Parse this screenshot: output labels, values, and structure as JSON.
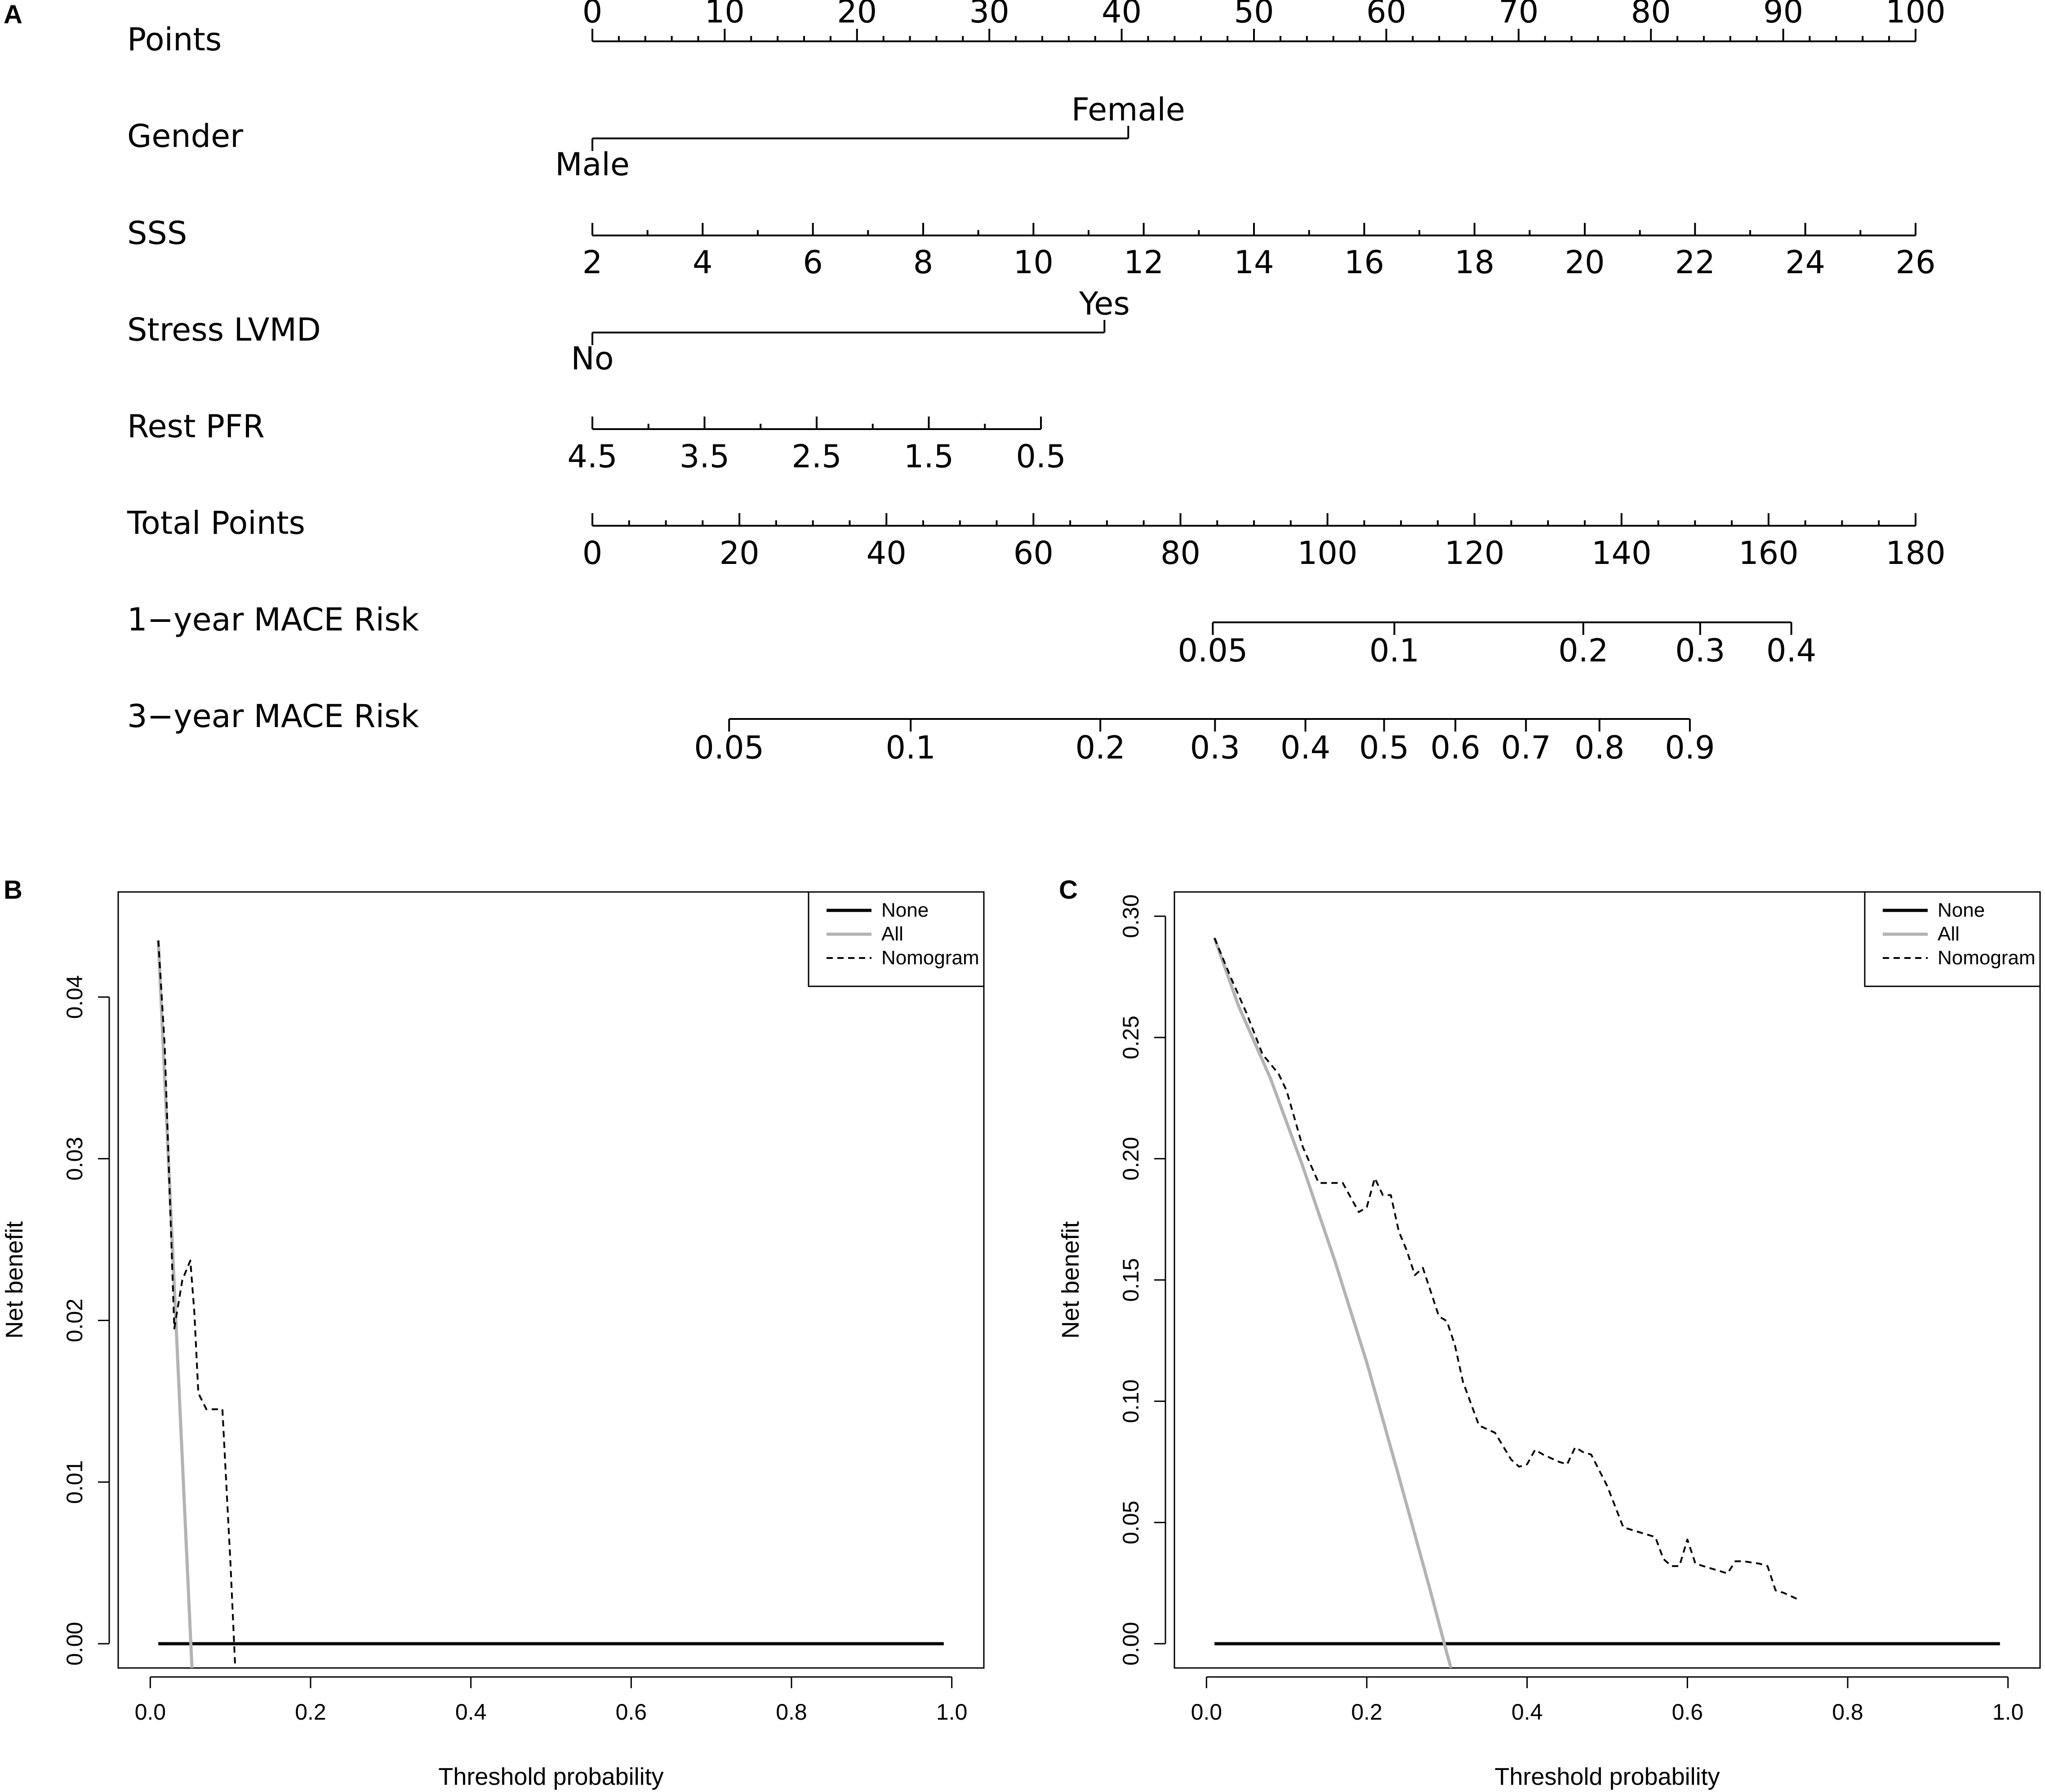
{
  "chart_data": [
    {
      "type": "nomogram",
      "panel_label": "A",
      "rows": [
        {
          "label": "Points",
          "kind": "axis",
          "tick_labels": [
            "0",
            "10",
            "20",
            "30",
            "40",
            "50",
            "60",
            "70",
            "80",
            "90",
            "100"
          ]
        },
        {
          "label": "Gender",
          "kind": "categorical",
          "low_label": "Male",
          "high_label": "Female",
          "points": [
            0,
            40.5
          ]
        },
        {
          "label": "SSS",
          "kind": "scale",
          "tick_labels": [
            "2",
            "4",
            "6",
            "8",
            "10",
            "12",
            "14",
            "16",
            "18",
            "20",
            "22",
            "24",
            "26"
          ],
          "points_range": [
            0,
            100
          ]
        },
        {
          "label": "Stress LVMD",
          "kind": "categorical",
          "low_label": "No",
          "high_label": "Yes",
          "points": [
            0,
            38.7
          ]
        },
        {
          "label": "Rest PFR",
          "kind": "scale",
          "tick_labels": [
            "4.5",
            "3.5",
            "2.5",
            "1.5",
            "0.5"
          ],
          "points_range": [
            0,
            33.9
          ]
        },
        {
          "label": "Total Points",
          "kind": "axis",
          "tick_labels": [
            "0",
            "20",
            "40",
            "60",
            "80",
            "100",
            "120",
            "140",
            "160",
            "180"
          ]
        },
        {
          "label": "1−year MACE Risk",
          "kind": "risk",
          "tick_labels": [
            "0.05",
            "0.1",
            "0.2",
            "0.3",
            "0.4"
          ],
          "total_points": [
            84.4,
            109.1,
            134.8,
            150.7,
            163.1
          ]
        },
        {
          "label": "3−year MACE Risk",
          "kind": "risk",
          "tick_labels": [
            "0.05",
            "0.1",
            "0.2",
            "0.3",
            "0.4",
            "0.5",
            "0.6",
            "0.7",
            "0.8",
            "0.9"
          ],
          "total_points": [
            18.6,
            43.3,
            69.1,
            84.7,
            97.0,
            107.7,
            117.4,
            127.0,
            137.0,
            149.3
          ]
        }
      ]
    },
    {
      "type": "line",
      "panel_label": "B",
      "xlabel": "Threshold probability",
      "ylabel": "Net benefit",
      "xlim": [
        0,
        1
      ],
      "ylim": [
        0,
        0.045
      ],
      "x_ticks": [
        0,
        0.2,
        0.4,
        0.6,
        0.8,
        1.0
      ],
      "x_tick_labels": [
        "0.0",
        "0.2",
        "0.4",
        "0.6",
        "0.8",
        "1.0"
      ],
      "y_ticks": [
        0,
        0.01,
        0.02,
        0.03,
        0.04
      ],
      "y_tick_labels": [
        "0.00",
        "0.01",
        "0.02",
        "0.03",
        "0.04"
      ],
      "legend": {
        "position": "top-right",
        "entries": [
          "None",
          "All",
          "Nomogram"
        ]
      },
      "series": [
        {
          "name": "None",
          "style": "solid",
          "color": "#000000",
          "x": [
            0.01,
            0.99
          ],
          "y": [
            0,
            0
          ]
        },
        {
          "name": "All",
          "style": "solid",
          "color": "#b3b3b3",
          "x": [
            0.01,
            0.052
          ],
          "y": [
            0.0435,
            -0.0015
          ]
        },
        {
          "name": "Nomogram",
          "style": "dashed",
          "color": "#000000",
          "x": [
            0.01,
            0.018,
            0.03,
            0.04,
            0.05,
            0.055,
            0.06,
            0.07,
            0.08,
            0.09,
            0.1,
            0.106
          ],
          "y": [
            0.0435,
            0.037,
            0.0195,
            0.0225,
            0.0237,
            0.0205,
            0.0155,
            0.0145,
            0.0145,
            0.0145,
            0.005,
            -0.0015
          ]
        }
      ]
    },
    {
      "type": "line",
      "panel_label": "C",
      "xlabel": "Threshold probability",
      "ylabel": "Net benefit",
      "xlim": [
        0,
        1
      ],
      "ylim": [
        0,
        0.3
      ],
      "x_ticks": [
        0,
        0.2,
        0.4,
        0.6,
        0.8,
        1.0
      ],
      "x_tick_labels": [
        "0.0",
        "0.2",
        "0.4",
        "0.6",
        "0.8",
        "1.0"
      ],
      "y_ticks": [
        0,
        0.05,
        0.1,
        0.15,
        0.2,
        0.25,
        0.3
      ],
      "y_tick_labels": [
        "0.00",
        "0.05",
        "0.10",
        "0.15",
        "0.20",
        "0.25",
        "0.30"
      ],
      "legend": {
        "position": "top-right",
        "entries": [
          "None",
          "All",
          "Nomogram"
        ]
      },
      "series": [
        {
          "name": "None",
          "style": "solid",
          "color": "#000000",
          "x": [
            0.01,
            0.99
          ],
          "y": [
            0,
            0
          ]
        },
        {
          "name": "All",
          "style": "solid",
          "color": "#b3b3b3",
          "x": [
            0.01,
            0.04,
            0.08,
            0.12,
            0.16,
            0.2,
            0.24,
            0.28,
            0.3,
            0.305
          ],
          "y": [
            0.291,
            0.263,
            0.233,
            0.197,
            0.158,
            0.116,
            0.069,
            0.021,
            -0.004,
            -0.01
          ]
        },
        {
          "name": "Nomogram",
          "style": "dashed",
          "color": "#000000",
          "x": [
            0.01,
            0.03,
            0.05,
            0.07,
            0.09,
            0.1,
            0.12,
            0.14,
            0.15,
            0.17,
            0.19,
            0.2,
            0.21,
            0.22,
            0.23,
            0.24,
            0.25,
            0.26,
            0.27,
            0.28,
            0.29,
            0.3,
            0.31,
            0.32,
            0.34,
            0.36,
            0.38,
            0.39,
            0.4,
            0.41,
            0.42,
            0.44,
            0.45,
            0.46,
            0.47,
            0.48,
            0.5,
            0.52,
            0.54,
            0.55,
            0.56,
            0.57,
            0.58,
            0.59,
            0.6,
            0.61,
            0.63,
            0.65,
            0.66,
            0.67,
            0.69,
            0.7,
            0.71,
            0.72,
            0.74
          ],
          "y": [
            0.291,
            0.275,
            0.26,
            0.243,
            0.235,
            0.228,
            0.205,
            0.19,
            0.19,
            0.19,
            0.178,
            0.18,
            0.192,
            0.185,
            0.185,
            0.17,
            0.162,
            0.152,
            0.155,
            0.145,
            0.135,
            0.133,
            0.123,
            0.108,
            0.09,
            0.087,
            0.076,
            0.073,
            0.074,
            0.08,
            0.078,
            0.075,
            0.074,
            0.081,
            0.079,
            0.078,
            0.065,
            0.048,
            0.046,
            0.045,
            0.044,
            0.035,
            0.032,
            0.032,
            0.043,
            0.033,
            0.031,
            0.029,
            0.034,
            0.034,
            0.033,
            0.032,
            0.022,
            0.021,
            0.018
          ]
        }
      ]
    }
  ]
}
